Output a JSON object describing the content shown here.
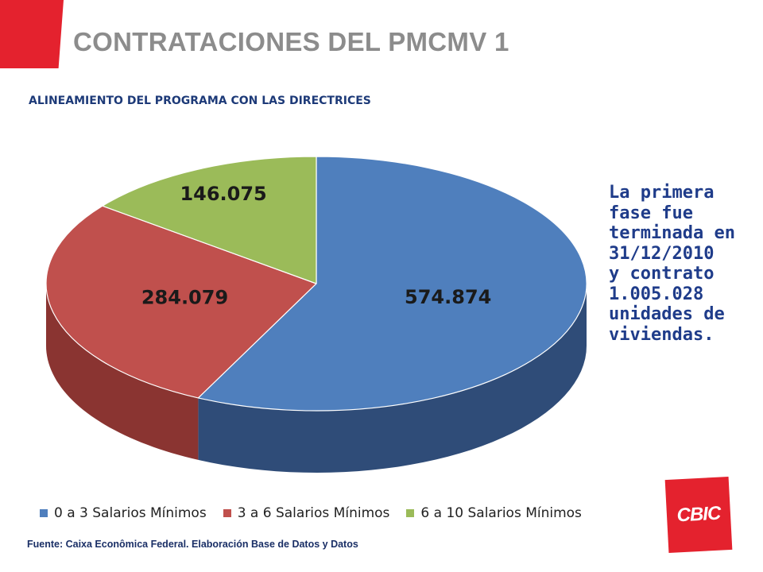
{
  "header": {
    "title": "CONTRATACIONES DEL PMCMV 1",
    "subtitle": "ALINEAMIENTO DEL PROGRAMA CON LAS DIRECTRICES"
  },
  "note": "La primera\nfase fue\nterminada en\n31/12/2010\ny contrato\n1.005.028\nunidades de\nviviendas.",
  "source": "Fuente: Caixa Econômica Federal. Elaboración Base de Datos y Datos",
  "logo": {
    "text": "CBIC",
    "color": "#e4222e"
  },
  "chart_data": {
    "type": "pie",
    "style": "3d",
    "title": "",
    "legend_position": "bottom",
    "series": [
      {
        "name": "0 a 3 Salarios Mínimos",
        "value": 574874,
        "label": "574.874",
        "color": "#4f7fbd",
        "side_color": "#2f4c78"
      },
      {
        "name": "3 a 6 Salarios Mínimos",
        "value": 284079,
        "label": "284.079",
        "color": "#c0504d",
        "side_color": "#8a3431"
      },
      {
        "name": "6 a 10 Salarios Mínimos",
        "value": 146075,
        "label": "146.075",
        "color": "#9bbb59",
        "side_color": "#6f8a3c"
      }
    ]
  }
}
